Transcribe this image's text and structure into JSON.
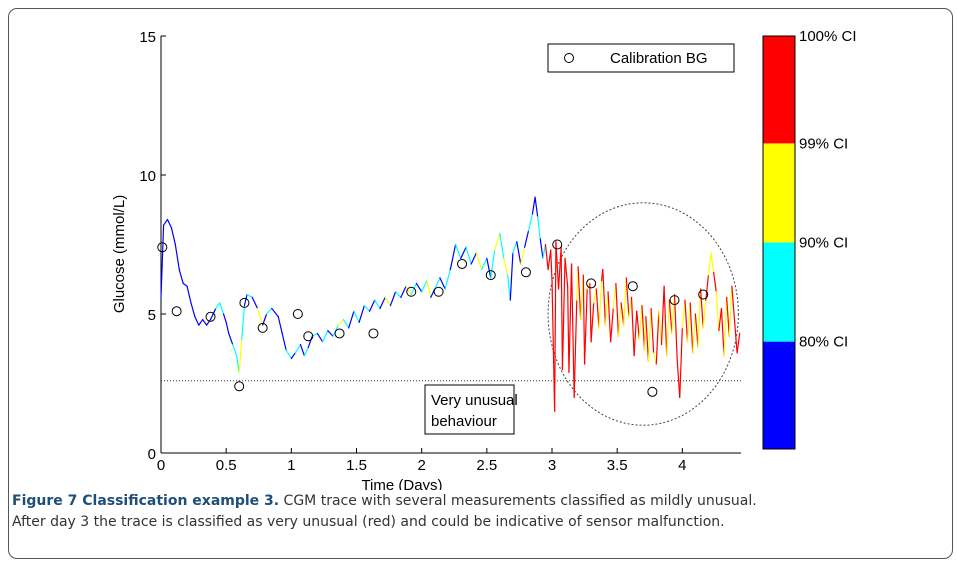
{
  "figure": {
    "caption_title": "Figure 7 Classification example 3.",
    "caption_line1": " CGM trace with several measurements classified as mildly unusual.",
    "caption_line2": "After day 3 the trace is classified as very unusual (red) and could be indicative of sensor malfunction."
  },
  "chart_data": {
    "type": "line",
    "title": "",
    "xlabel": "Time (Days)",
    "ylabel": "Glucose (mmol/L)",
    "xlim": [
      0,
      4.45
    ],
    "ylim": [
      0,
      15
    ],
    "xticks": [
      "0",
      "0.5",
      "1",
      "1.5",
      "2",
      "2.5",
      "3",
      "3.5",
      "4"
    ],
    "xtick_values": [
      0,
      0.5,
      1,
      1.5,
      2,
      2.5,
      3,
      3.5,
      4
    ],
    "yticks": [
      "0",
      "5",
      "10",
      "15"
    ],
    "ytick_values": [
      0,
      5,
      10,
      15
    ],
    "grid": false,
    "legend": {
      "position": "top-right",
      "entries": [
        "Calibration BG"
      ],
      "marker": "open-circle"
    },
    "threshold_line": {
      "y": 2.6,
      "style": "dotted"
    },
    "annotation": {
      "line1": "Very unusual",
      "line2": "behaviour",
      "x": 1.05,
      "y": 1.5
    },
    "highlight_ellipse": {
      "cx": 3.7,
      "cy": 5.0,
      "rx": 0.73,
      "ry": 4.0,
      "style": "dotted"
    },
    "colorbar": {
      "levels": [
        {
          "label": "80% CI",
          "color": "#0000ff",
          "from": 0,
          "to": 0.26
        },
        {
          "label": "90% CI",
          "color": "#00ffff",
          "from": 0.26,
          "to": 0.5
        },
        {
          "label": "99% CI",
          "color": "#ffff00",
          "from": 0.5,
          "to": 0.74
        },
        {
          "label": "100% CI",
          "color": "#ff0000",
          "from": 0.74,
          "to": 1.0
        }
      ]
    },
    "calibration_bg": {
      "x": [
        0.01,
        0.12,
        0.38,
        0.6,
        0.64,
        0.78,
        1.05,
        1.13,
        1.37,
        1.63,
        1.92,
        2.13,
        2.31,
        2.53,
        2.8,
        3.04,
        3.3,
        3.62,
        3.77,
        3.94,
        4.16
      ],
      "y": [
        7.4,
        5.1,
        4.9,
        2.4,
        5.4,
        4.5,
        5.0,
        4.2,
        4.3,
        4.3,
        5.8,
        5.8,
        6.8,
        6.4,
        6.5,
        7.5,
        6.1,
        6.0,
        2.2,
        5.5,
        5.7
      ]
    },
    "cgm_series": {
      "name": "CGM trace",
      "points": [
        [
          0.0,
          5.6,
          0
        ],
        [
          0.02,
          8.2,
          0
        ],
        [
          0.05,
          8.4,
          0
        ],
        [
          0.08,
          8.1,
          0
        ],
        [
          0.11,
          7.5,
          0
        ],
        [
          0.14,
          6.6,
          0
        ],
        [
          0.17,
          6.1,
          0
        ],
        [
          0.2,
          6.0,
          0
        ],
        [
          0.23,
          5.4,
          0
        ],
        [
          0.26,
          4.9,
          0
        ],
        [
          0.29,
          4.6,
          0
        ],
        [
          0.32,
          4.8,
          0
        ],
        [
          0.35,
          4.6,
          0
        ],
        [
          0.38,
          4.8,
          0
        ],
        [
          0.42,
          5.2,
          0
        ],
        [
          0.45,
          5.4,
          1
        ],
        [
          0.48,
          5.0,
          1
        ],
        [
          0.5,
          4.7,
          0
        ],
        [
          0.52,
          4.3,
          0
        ],
        [
          0.55,
          3.9,
          0
        ],
        [
          0.58,
          3.5,
          1
        ],
        [
          0.6,
          2.9,
          1
        ],
        [
          0.62,
          4.1,
          2
        ],
        [
          0.64,
          5.3,
          1
        ],
        [
          0.66,
          5.7,
          0
        ],
        [
          0.7,
          5.6,
          1
        ],
        [
          0.74,
          5.2,
          0
        ],
        [
          0.78,
          4.6,
          2
        ],
        [
          0.81,
          5.0,
          0
        ],
        [
          0.85,
          5.2,
          1
        ],
        [
          0.9,
          4.9,
          0
        ],
        [
          0.93,
          4.3,
          0
        ],
        [
          0.96,
          3.7,
          0
        ],
        [
          1.0,
          3.4,
          1
        ],
        [
          1.03,
          3.6,
          0
        ],
        [
          1.07,
          3.9,
          1
        ],
        [
          1.1,
          3.5,
          0
        ],
        [
          1.13,
          3.8,
          1
        ],
        [
          1.16,
          4.2,
          0
        ],
        [
          1.2,
          4.3,
          1
        ],
        [
          1.24,
          4.0,
          0
        ],
        [
          1.28,
          4.4,
          1
        ],
        [
          1.32,
          4.2,
          0
        ],
        [
          1.36,
          4.6,
          1
        ],
        [
          1.4,
          4.8,
          2
        ],
        [
          1.44,
          4.5,
          1
        ],
        [
          1.48,
          5.1,
          0
        ],
        [
          1.52,
          4.7,
          1
        ],
        [
          1.56,
          5.3,
          0
        ],
        [
          1.6,
          5.1,
          1
        ],
        [
          1.64,
          5.5,
          0
        ],
        [
          1.68,
          5.2,
          1
        ],
        [
          1.72,
          5.6,
          0
        ],
        [
          1.76,
          5.3,
          2
        ],
        [
          1.8,
          5.8,
          0
        ],
        [
          1.84,
          5.6,
          1
        ],
        [
          1.88,
          6.0,
          0
        ],
        [
          1.92,
          5.7,
          2
        ],
        [
          1.96,
          6.1,
          1
        ],
        [
          2.0,
          5.8,
          0
        ],
        [
          2.04,
          6.2,
          1
        ],
        [
          2.07,
          5.6,
          2
        ],
        [
          2.1,
          5.9,
          0
        ],
        [
          2.14,
          6.3,
          1
        ],
        [
          2.18,
          5.9,
          0
        ],
        [
          2.22,
          6.6,
          1
        ],
        [
          2.26,
          7.5,
          0
        ],
        [
          2.3,
          7.0,
          1
        ],
        [
          2.34,
          7.4,
          0
        ],
        [
          2.38,
          6.8,
          1
        ],
        [
          2.42,
          7.2,
          0
        ],
        [
          2.46,
          6.6,
          2
        ],
        [
          2.5,
          7.0,
          1
        ],
        [
          2.53,
          6.3,
          0
        ],
        [
          2.56,
          7.3,
          1
        ],
        [
          2.6,
          7.9,
          2
        ],
        [
          2.63,
          7.0,
          1
        ],
        [
          2.66,
          6.4,
          2
        ],
        [
          2.68,
          5.5,
          1
        ],
        [
          2.7,
          7.2,
          0
        ],
        [
          2.73,
          7.6,
          1
        ],
        [
          2.76,
          6.8,
          0
        ],
        [
          2.79,
          7.4,
          2
        ],
        [
          2.82,
          8.0,
          0
        ],
        [
          2.85,
          8.6,
          1
        ],
        [
          2.87,
          9.2,
          0
        ],
        [
          2.89,
          8.5,
          0
        ],
        [
          2.91,
          7.7,
          1
        ],
        [
          2.93,
          7.0,
          0
        ],
        [
          2.95,
          7.5,
          1
        ],
        [
          2.97,
          6.6,
          3
        ],
        [
          2.99,
          7.3,
          3
        ],
        [
          3.0,
          6.2,
          3
        ],
        [
          3.02,
          1.5,
          3
        ],
        [
          3.03,
          7.6,
          3
        ],
        [
          3.05,
          5.9,
          3
        ],
        [
          3.07,
          7.4,
          3
        ],
        [
          3.08,
          3.0,
          3
        ],
        [
          3.1,
          7.0,
          3
        ],
        [
          3.12,
          6.0,
          3
        ],
        [
          3.13,
          2.9,
          3
        ],
        [
          3.15,
          6.8,
          3
        ],
        [
          3.17,
          2.0,
          3
        ],
        [
          3.19,
          5.5,
          3
        ],
        [
          3.2,
          6.7,
          2
        ],
        [
          3.22,
          4.8,
          3
        ],
        [
          3.24,
          6.4,
          2
        ],
        [
          3.25,
          3.2,
          3
        ],
        [
          3.27,
          5.9,
          3
        ],
        [
          3.29,
          6.1,
          2
        ],
        [
          3.3,
          4.0,
          3
        ],
        [
          3.32,
          5.4,
          3
        ],
        [
          3.34,
          5.9,
          2
        ],
        [
          3.36,
          4.5,
          3
        ],
        [
          3.38,
          6.2,
          2
        ],
        [
          3.39,
          6.6,
          3
        ],
        [
          3.41,
          4.6,
          3
        ],
        [
          3.43,
          5.8,
          2
        ],
        [
          3.45,
          4.0,
          3
        ],
        [
          3.47,
          5.2,
          3
        ],
        [
          3.49,
          6.1,
          2
        ],
        [
          3.51,
          4.2,
          3
        ],
        [
          3.53,
          5.4,
          2
        ],
        [
          3.55,
          4.6,
          3
        ],
        [
          3.57,
          6.3,
          2
        ],
        [
          3.59,
          4.9,
          3
        ],
        [
          3.61,
          5.6,
          2
        ],
        [
          3.63,
          3.5,
          3
        ],
        [
          3.65,
          5.1,
          3
        ],
        [
          3.67,
          4.1,
          3
        ],
        [
          3.69,
          5.3,
          2
        ],
        [
          3.71,
          3.7,
          3
        ],
        [
          3.72,
          4.9,
          2
        ],
        [
          3.74,
          3.3,
          3
        ],
        [
          3.76,
          5.2,
          2
        ],
        [
          3.78,
          3.6,
          3
        ],
        [
          3.8,
          3.2,
          2
        ],
        [
          3.82,
          5.1,
          3
        ],
        [
          3.84,
          3.9,
          2
        ],
        [
          3.86,
          6.0,
          3
        ],
        [
          3.88,
          3.5,
          3
        ],
        [
          3.9,
          5.5,
          2
        ],
        [
          3.92,
          4.3,
          3
        ],
        [
          3.94,
          5.7,
          2
        ],
        [
          3.96,
          3.4,
          3
        ],
        [
          3.98,
          2.0,
          3
        ],
        [
          4.0,
          4.5,
          3
        ],
        [
          4.02,
          5.5,
          2
        ],
        [
          4.04,
          4.0,
          3
        ],
        [
          4.06,
          5.4,
          2
        ],
        [
          4.08,
          3.6,
          3
        ],
        [
          4.1,
          5.0,
          2
        ],
        [
          4.12,
          3.8,
          3
        ],
        [
          4.14,
          5.9,
          2
        ],
        [
          4.16,
          4.5,
          3
        ],
        [
          4.18,
          5.5,
          2
        ],
        [
          4.2,
          6.4,
          3
        ],
        [
          4.22,
          7.2,
          2
        ],
        [
          4.24,
          6.5,
          2
        ],
        [
          4.26,
          5.8,
          3
        ],
        [
          4.28,
          4.4,
          2
        ],
        [
          4.3,
          5.2,
          3
        ],
        [
          4.32,
          3.5,
          3
        ],
        [
          4.34,
          5.6,
          2
        ],
        [
          4.36,
          4.2,
          3
        ],
        [
          4.38,
          6.0,
          2
        ],
        [
          4.4,
          4.8,
          3
        ],
        [
          4.42,
          3.6,
          3
        ],
        [
          4.44,
          4.3,
          3
        ]
      ]
    }
  }
}
